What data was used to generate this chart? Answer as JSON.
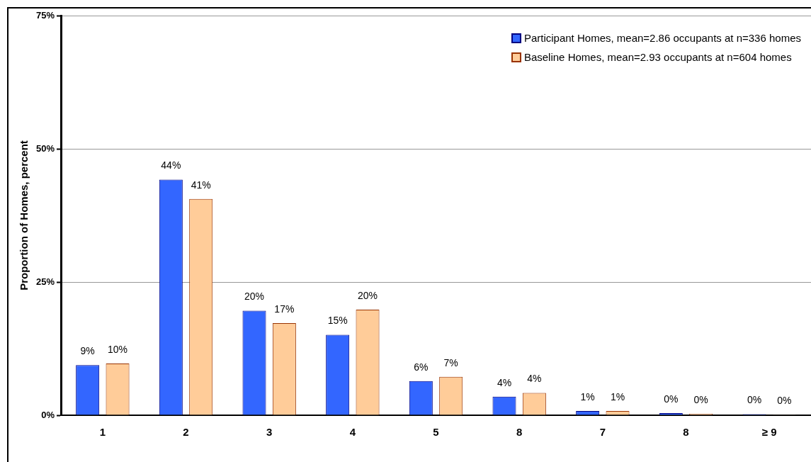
{
  "chart_data": {
    "type": "bar",
    "ylabel": "Proportion of Homes, percent",
    "categories": [
      "1",
      "2",
      "3",
      "4",
      "5",
      "8",
      "7",
      "8",
      "≥ 9"
    ],
    "series": [
      {
        "name": "Participant Homes, mean=2.86 occupants at n=336 homes",
        "color": "#3366ff",
        "values": [
          9.4,
          44.2,
          19.6,
          15.1,
          6.4,
          3.5,
          0.8,
          0.4,
          0.2
        ],
        "value_labels": [
          "9%",
          "44%",
          "20%",
          "15%",
          "6%",
          "4%",
          "1%",
          "0%",
          "0%"
        ]
      },
      {
        "name": "Baseline Homes, mean=2.93 occupants at n=604 homes",
        "color": "#ffcc99",
        "values": [
          9.7,
          40.6,
          17.3,
          19.8,
          7.2,
          4.2,
          0.8,
          0.3,
          0.1
        ],
        "value_labels": [
          "10%",
          "41%",
          "17%",
          "20%",
          "7%",
          "4%",
          "1%",
          "0%",
          "0%"
        ]
      }
    ],
    "ylim": [
      0,
      75
    ],
    "yticks": [
      {
        "value": 0,
        "label": "0%"
      },
      {
        "value": 25,
        "label": "25%"
      },
      {
        "value": 50,
        "label": "50%"
      },
      {
        "value": 75,
        "label": "75%"
      }
    ],
    "grid": "y",
    "legend": "top right"
  }
}
